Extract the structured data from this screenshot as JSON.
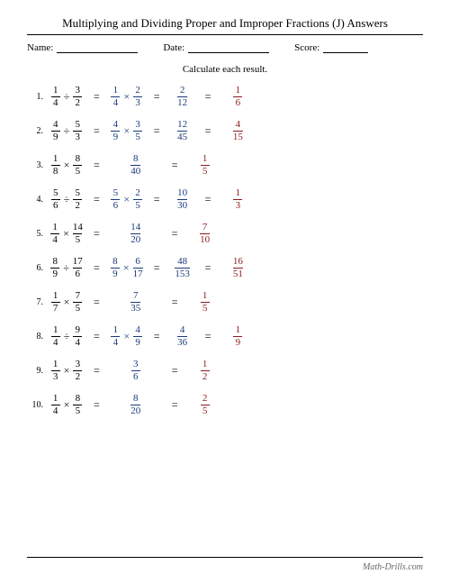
{
  "title": "Multiplying and Dividing Proper and Improper Fractions (J) Answers",
  "header": {
    "name_label": "Name:",
    "date_label": "Date:",
    "score_label": "Score:"
  },
  "instruction": "Calculate each result.",
  "colors": {
    "step1": "#000000",
    "step2": "#1a3a7a",
    "step3": "#1a3a7a",
    "step4": "#8b1a1a"
  },
  "problems": [
    {
      "n": "1.",
      "a": {
        "n": "1",
        "d": "4"
      },
      "op": "÷",
      "b": {
        "n": "3",
        "d": "2"
      },
      "s2": {
        "a": {
          "n": "1",
          "d": "4"
        },
        "op": "×",
        "b": {
          "n": "2",
          "d": "3"
        }
      },
      "s3": {
        "n": "2",
        "d": "12"
      },
      "s4": {
        "n": "1",
        "d": "6"
      }
    },
    {
      "n": "2.",
      "a": {
        "n": "4",
        "d": "9"
      },
      "op": "÷",
      "b": {
        "n": "5",
        "d": "3"
      },
      "s2": {
        "a": {
          "n": "4",
          "d": "9"
        },
        "op": "×",
        "b": {
          "n": "3",
          "d": "5"
        }
      },
      "s3": {
        "n": "12",
        "d": "45"
      },
      "s4": {
        "n": "4",
        "d": "15"
      }
    },
    {
      "n": "3.",
      "a": {
        "n": "1",
        "d": "8"
      },
      "op": "×",
      "b": {
        "n": "8",
        "d": "5"
      },
      "s2": null,
      "s3": {
        "n": "8",
        "d": "40"
      },
      "s4": {
        "n": "1",
        "d": "5"
      }
    },
    {
      "n": "4.",
      "a": {
        "n": "5",
        "d": "6"
      },
      "op": "÷",
      "b": {
        "n": "5",
        "d": "2"
      },
      "s2": {
        "a": {
          "n": "5",
          "d": "6"
        },
        "op": "×",
        "b": {
          "n": "2",
          "d": "5"
        }
      },
      "s3": {
        "n": "10",
        "d": "30"
      },
      "s4": {
        "n": "1",
        "d": "3"
      }
    },
    {
      "n": "5.",
      "a": {
        "n": "1",
        "d": "4"
      },
      "op": "×",
      "b": {
        "n": "14",
        "d": "5"
      },
      "s2": null,
      "s3": {
        "n": "14",
        "d": "20"
      },
      "s4": {
        "n": "7",
        "d": "10"
      }
    },
    {
      "n": "6.",
      "a": {
        "n": "8",
        "d": "9"
      },
      "op": "÷",
      "b": {
        "n": "17",
        "d": "6"
      },
      "s2": {
        "a": {
          "n": "8",
          "d": "9"
        },
        "op": "×",
        "b": {
          "n": "6",
          "d": "17"
        }
      },
      "s3": {
        "n": "48",
        "d": "153"
      },
      "s4": {
        "n": "16",
        "d": "51"
      }
    },
    {
      "n": "7.",
      "a": {
        "n": "1",
        "d": "7"
      },
      "op": "×",
      "b": {
        "n": "7",
        "d": "5"
      },
      "s2": null,
      "s3": {
        "n": "7",
        "d": "35"
      },
      "s4": {
        "n": "1",
        "d": "5"
      }
    },
    {
      "n": "8.",
      "a": {
        "n": "1",
        "d": "4"
      },
      "op": "÷",
      "b": {
        "n": "9",
        "d": "4"
      },
      "s2": {
        "a": {
          "n": "1",
          "d": "4"
        },
        "op": "×",
        "b": {
          "n": "4",
          "d": "9"
        }
      },
      "s3": {
        "n": "4",
        "d": "36"
      },
      "s4": {
        "n": "1",
        "d": "9"
      }
    },
    {
      "n": "9.",
      "a": {
        "n": "1",
        "d": "3"
      },
      "op": "×",
      "b": {
        "n": "3",
        "d": "2"
      },
      "s2": null,
      "s3": {
        "n": "3",
        "d": "6"
      },
      "s4": {
        "n": "1",
        "d": "2"
      }
    },
    {
      "n": "10.",
      "a": {
        "n": "1",
        "d": "4"
      },
      "op": "×",
      "b": {
        "n": "8",
        "d": "5"
      },
      "s2": null,
      "s3": {
        "n": "8",
        "d": "20"
      },
      "s4": {
        "n": "2",
        "d": "5"
      }
    }
  ],
  "footer": "Math-Drills.com"
}
